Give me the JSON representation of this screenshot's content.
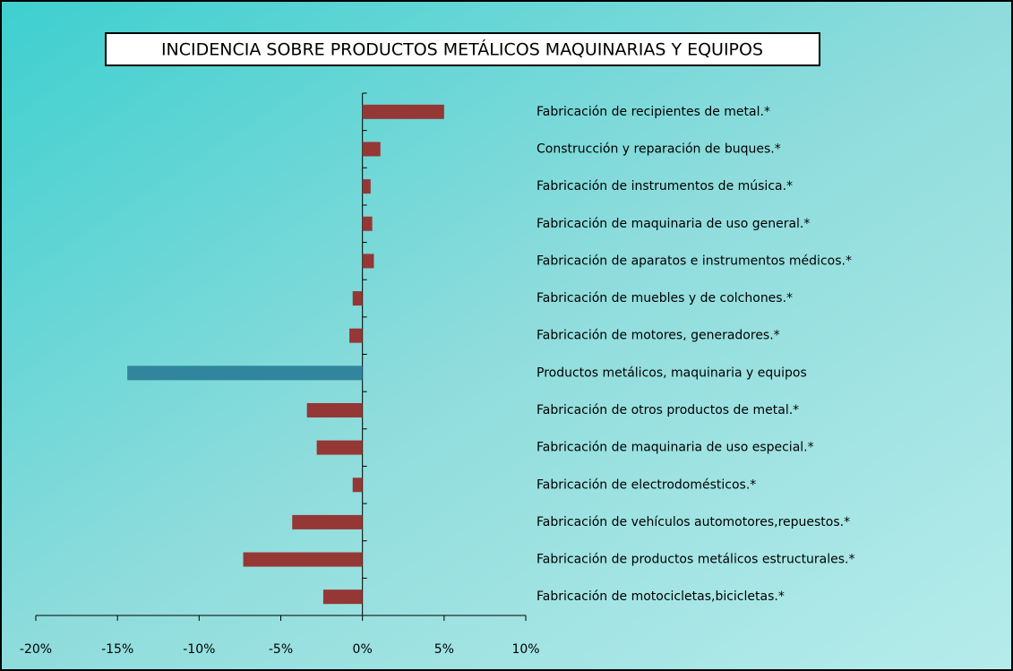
{
  "chart_data": {
    "type": "bar",
    "orientation": "horizontal",
    "title": "INCIDENCIA SOBRE PRODUCTOS METÁLICOS MAQUINARIAS Y EQUIPOS",
    "categories": [
      "Fabricación de recipientes de metal.*",
      "Construcción y  reparación de buques.*",
      "Fabricación de instrumentos de música.*",
      "Fabricación de maquinaria de uso general.*",
      "Fabricación de aparatos e instrumentos médicos.*",
      "Fabricación de muebles y de colchones.*",
      "Fabricación de motores, generadores.*",
      "Productos metálicos, maquinaria y equipos",
      "Fabricación de otros productos de metal.*",
      "Fabricación de maquinaria de uso especial.*",
      "Fabricación de electrodomésticos.*",
      "Fabricación de vehículos automotores,repuestos.*",
      "Fabricación de productos metálicos estructurales.*",
      "Fabricación de motocicletas,bicicletas.*"
    ],
    "values": [
      5.0,
      1.1,
      0.5,
      0.6,
      0.7,
      -0.6,
      -0.8,
      -14.4,
      -3.4,
      -2.8,
      -0.6,
      -4.3,
      -7.3,
      -2.4
    ],
    "colors": [
      "#953735",
      "#953735",
      "#953735",
      "#953735",
      "#953735",
      "#953735",
      "#953735",
      "#31859c",
      "#953735",
      "#953735",
      "#953735",
      "#953735",
      "#953735",
      "#953735"
    ],
    "xlim": [
      -20,
      10
    ],
    "xticks": [
      {
        "value": -20,
        "label": "-20%"
      },
      {
        "value": -15,
        "label": "-15%"
      },
      {
        "value": -10,
        "label": "-10%"
      },
      {
        "value": -5,
        "label": "-5%"
      },
      {
        "value": 0,
        "label": "0%"
      },
      {
        "value": 5,
        "label": "5%"
      },
      {
        "value": 10,
        "label": "10%"
      }
    ],
    "grid": false
  }
}
